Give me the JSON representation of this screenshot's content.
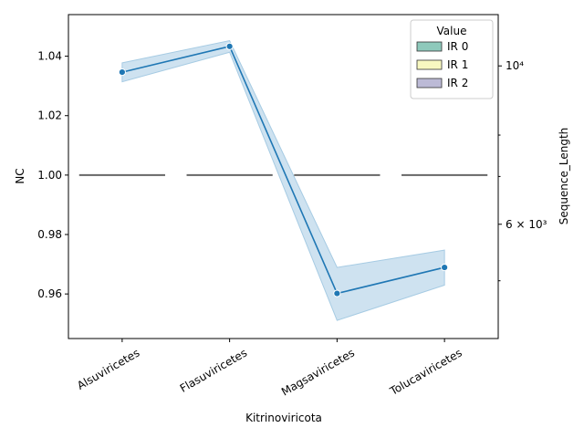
{
  "chart_data": {
    "type": "line",
    "xlabel": "Kitrinoviricota",
    "ylabel_left": "NC",
    "ylabel_right": "Sequence_Length",
    "categories": [
      "Alsuviricetes",
      "Flasuviricetes",
      "Magsaviricetes",
      "Tolucaviricetes"
    ],
    "left_axis": {
      "ylim": [
        0.945,
        1.054
      ],
      "ticks": [
        0.96,
        0.98,
        1.0,
        1.02,
        1.04
      ],
      "tick_labels": [
        "0.96",
        "0.98",
        "1.00",
        "1.02",
        "1.04"
      ]
    },
    "right_axis": {
      "scale": "log",
      "ylim": [
        4150,
        11800
      ],
      "major_ticks": [
        6000,
        10000
      ],
      "major_tick_labels": [
        "6 × 10³",
        "10⁴"
      ],
      "minor_ticks": [
        5000,
        7000,
        8000
      ]
    },
    "boxes": {
      "series_name": "NC",
      "values": [
        1.0,
        1.0,
        1.0,
        1.0
      ],
      "color": "#666666"
    },
    "line": {
      "axis": "right",
      "values": [
        9800,
        10650,
        4800,
        5220
      ],
      "ci_low": [
        9500,
        10450,
        4400,
        4930
      ],
      "ci_high": [
        10100,
        10850,
        5220,
        5520
      ],
      "color": "#1f77b4",
      "band_color": "#a6cbe3"
    },
    "legend": {
      "title": "Value",
      "placement": "top-right",
      "items": [
        {
          "label": "IR 0",
          "color": "#8ec9bb"
        },
        {
          "label": "IR 1",
          "color": "#f8f8c0"
        },
        {
          "label": "IR 2",
          "color": "#bcbad6"
        }
      ]
    },
    "grid": false
  }
}
